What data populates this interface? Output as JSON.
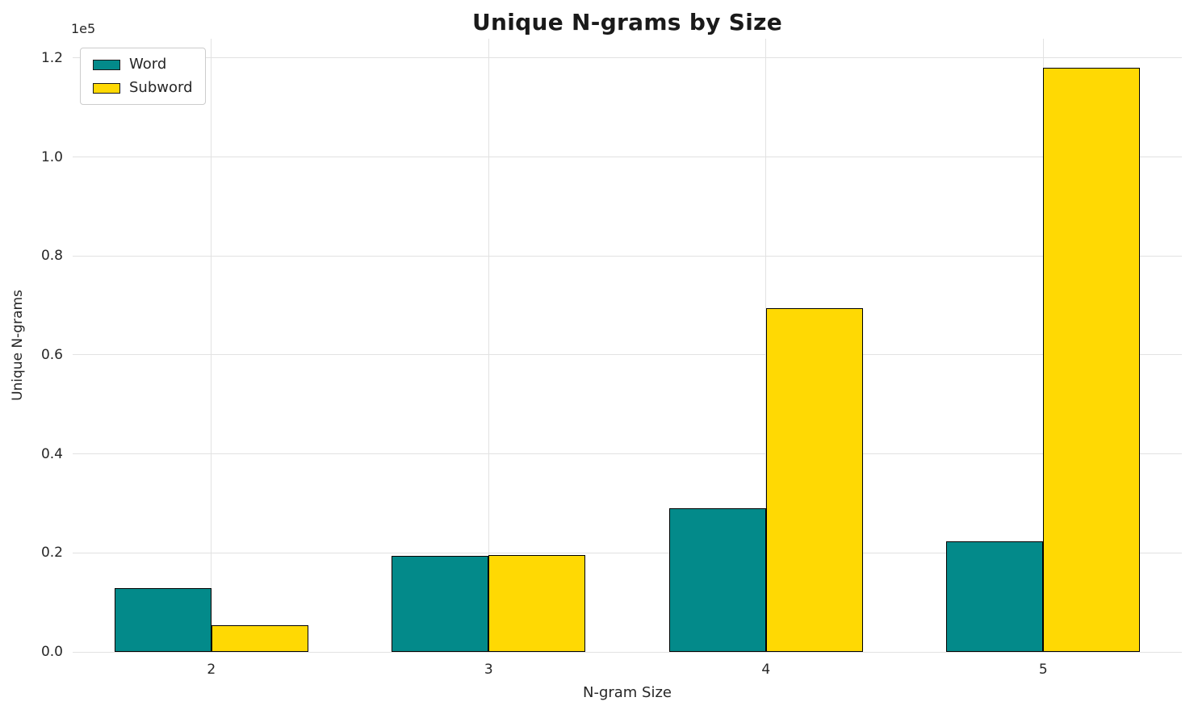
{
  "chart_data": {
    "type": "bar",
    "title": "Unique N-grams by Size",
    "xlabel": "N-gram Size",
    "ylabel": "Unique N-grams",
    "offset_text": "1e5",
    "categories": [
      "2",
      "3",
      "4",
      "5"
    ],
    "series": [
      {
        "name": "Word",
        "color": "#038a8a",
        "values": [
          12900,
          19400,
          29100,
          22300
        ]
      },
      {
        "name": "Subword",
        "color": "#ffd903",
        "values": [
          5400,
          19500,
          69500,
          118100
        ]
      }
    ],
    "ylim": [
      0,
      123900
    ],
    "yticks": [
      0,
      20000,
      40000,
      60000,
      80000,
      100000,
      120000
    ],
    "ytick_labels": [
      "0.0",
      "0.2",
      "0.4",
      "0.6",
      "0.8",
      "1.0",
      "1.2"
    ],
    "grid": true,
    "legend_position": "upper left",
    "bar_edge_color": "#000000",
    "bar_group_width_fraction": 0.35
  }
}
